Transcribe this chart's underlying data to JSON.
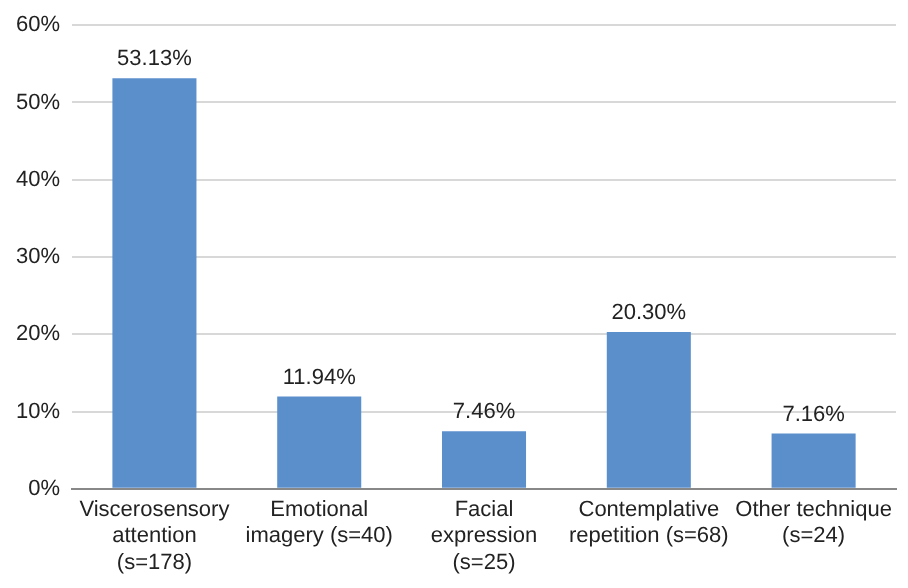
{
  "chart_data": {
    "type": "bar",
    "categories": [
      "Viscerosensory\nattention\n(s=178)",
      "Emotional\nimagery (s=40)",
      "Facial\nexpression\n(s=25)",
      "Contemplative\nrepetition (s=68)",
      "Other technique\n(s=24)"
    ],
    "values": [
      53.13,
      11.94,
      7.46,
      20.3,
      7.16
    ],
    "value_labels": [
      "53.13%",
      "11.94%",
      "7.46%",
      "20.30%",
      "7.16%"
    ],
    "color": "#5b8fcc",
    "ylim": [
      0,
      60
    ],
    "yticks": [
      {
        "value": 0,
        "label": "0%"
      },
      {
        "value": 10,
        "label": "10%"
      },
      {
        "value": 20,
        "label": "20%"
      },
      {
        "value": 30,
        "label": "30%"
      },
      {
        "value": 40,
        "label": "40%"
      },
      {
        "value": 50,
        "label": "50%"
      },
      {
        "value": 60,
        "label": "60%"
      }
    ],
    "grid": "y",
    "legend": false
  }
}
